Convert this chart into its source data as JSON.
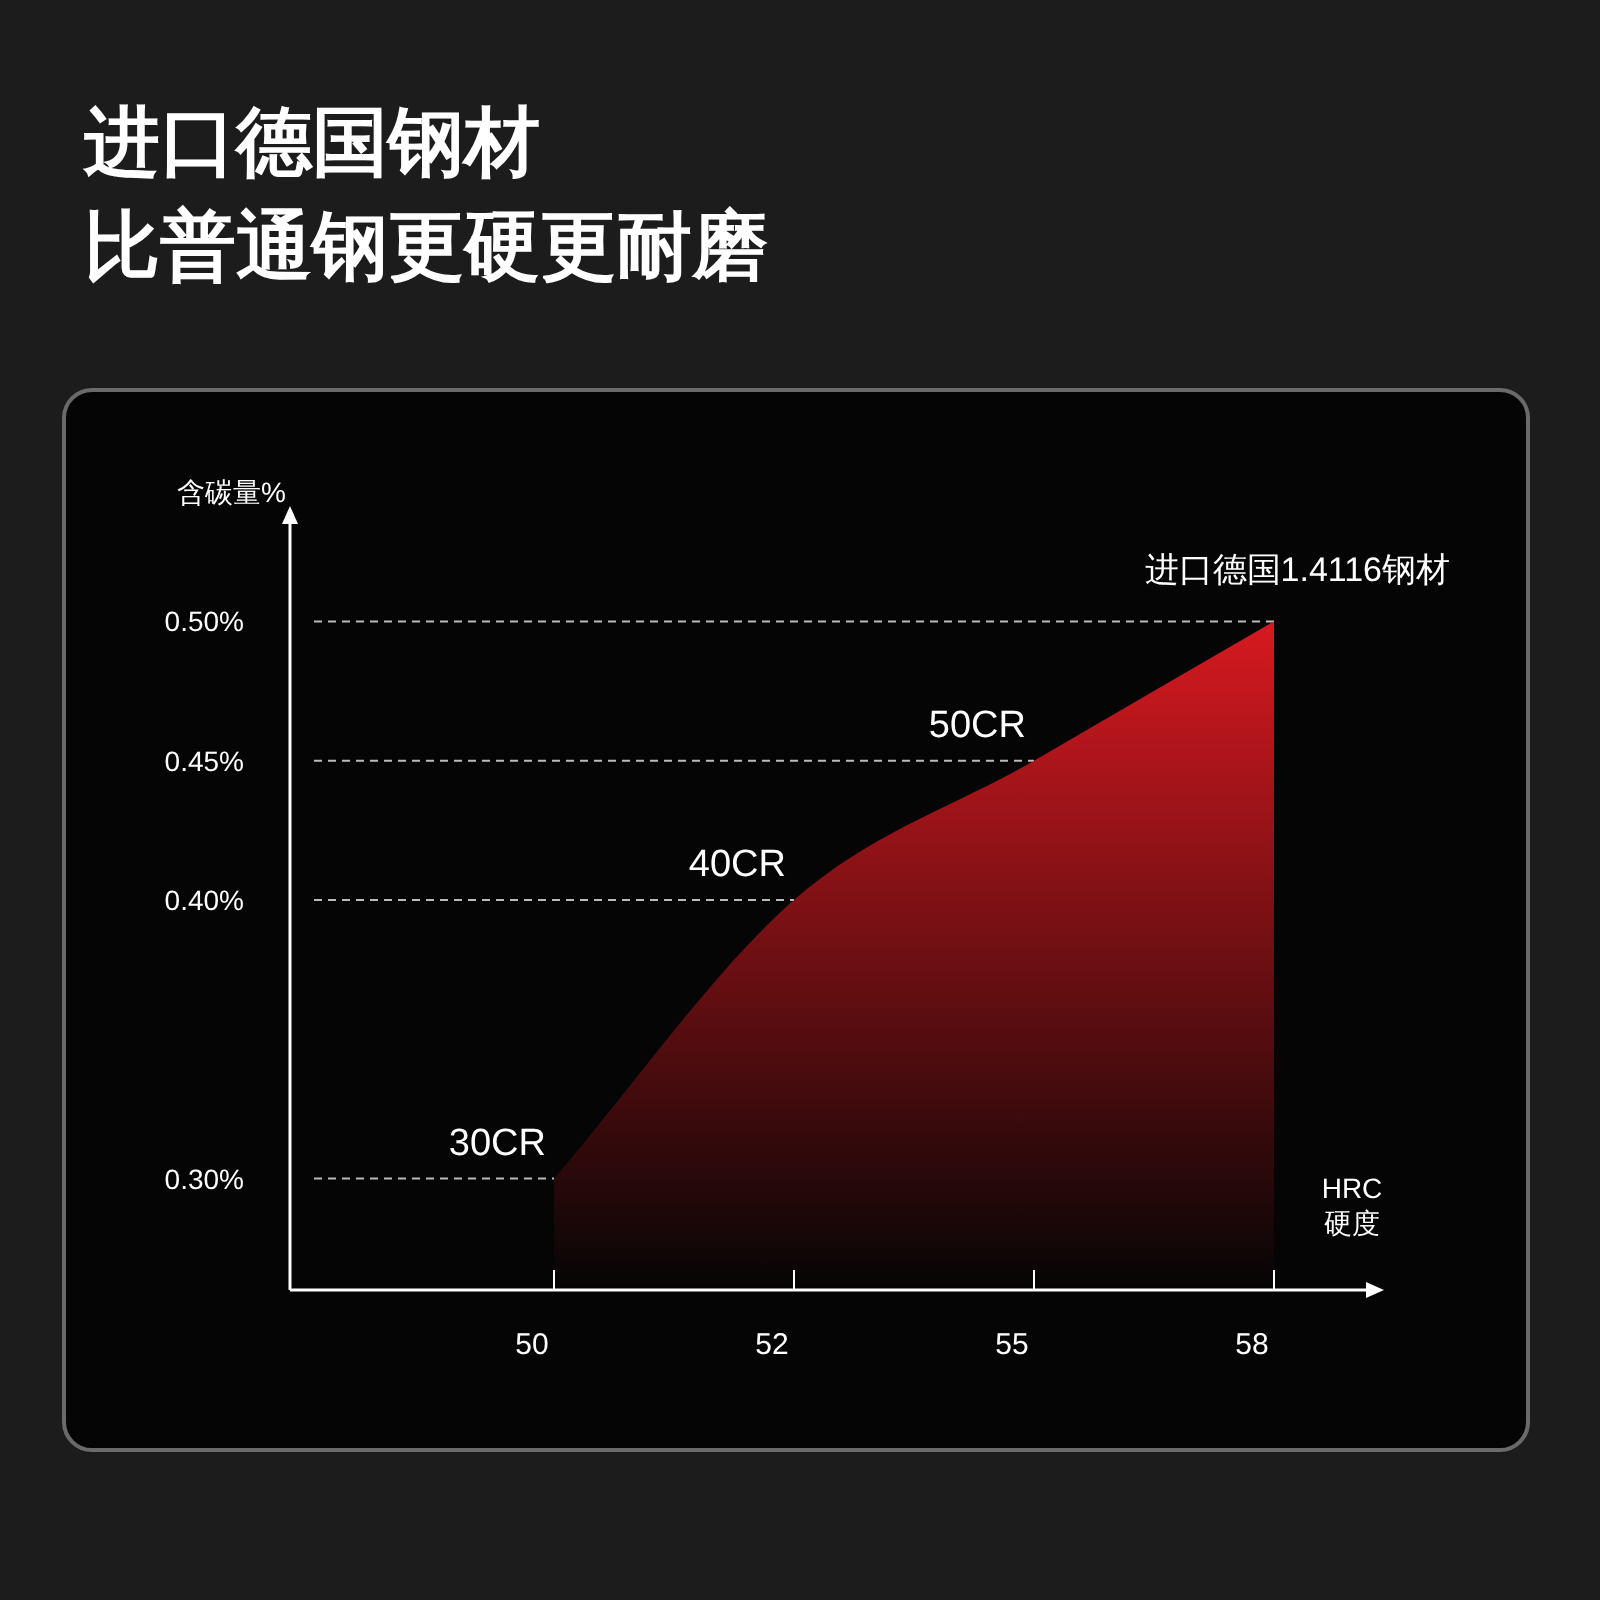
{
  "chart_data": {
    "type": "area",
    "title": "进口德国钢材",
    "subtitle": "比普通钢更硬更耐磨",
    "xlabel": "HRC\n硬度",
    "ylabel": "含碳量%",
    "categories": [
      "50",
      "52",
      "55",
      "58"
    ],
    "series": [
      {
        "color": "#d71920",
        "values": [
          0.3,
          0.4,
          0.45,
          0.5
        ]
      }
    ],
    "ylim": [
      0.26,
      0.54
    ],
    "yticks": [
      {
        "value": 0.3,
        "label": "0.30%"
      },
      {
        "value": 0.4,
        "label": "0.40%"
      },
      {
        "value": 0.45,
        "label": "0.45%"
      },
      {
        "value": 0.5,
        "label": "0.50%"
      }
    ],
    "ref_lines": [
      {
        "axis": "y",
        "value": 0.3,
        "line_style": "dashed"
      },
      {
        "axis": "y",
        "value": 0.4,
        "line_style": "dashed"
      },
      {
        "axis": "y",
        "value": 0.45,
        "line_style": "dashed"
      },
      {
        "axis": "y",
        "value": 0.5,
        "line_style": "dashed"
      }
    ],
    "annotations": [
      {
        "text": "30CR",
        "x": "50",
        "y": 0.3
      },
      {
        "text": "40CR",
        "x": "52",
        "y": 0.4
      },
      {
        "text": "50CR",
        "x": "55",
        "y": 0.45
      },
      {
        "text": "进口德国1.4116钢材",
        "x": "58",
        "y": 0.5
      }
    ]
  }
}
